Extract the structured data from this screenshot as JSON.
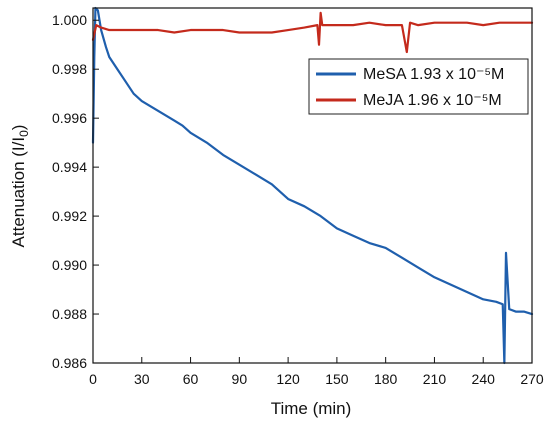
{
  "chart_data": {
    "type": "line",
    "xlabel": "Time (min)",
    "ylabel_main": "Attenuation (I/I",
    "ylabel_sub": "0",
    "ylabel_end": ")",
    "xlim": [
      0,
      270
    ],
    "ylim": [
      0.986,
      1.0005
    ],
    "x_ticks": [
      0,
      30,
      60,
      90,
      120,
      150,
      180,
      210,
      240,
      270
    ],
    "x_tick_labels": [
      "0",
      "30",
      "60",
      "90",
      "120",
      "150",
      "180",
      "210",
      "240",
      "270"
    ],
    "y_ticks": [
      0.986,
      0.988,
      0.99,
      0.992,
      0.994,
      0.996,
      0.998,
      1.0
    ],
    "y_tick_labels": [
      "0.986",
      "0.988",
      "0.990",
      "0.992",
      "0.994",
      "0.996",
      "0.998",
      "1.000"
    ],
    "grid": false,
    "legend_position": "top-right",
    "series": [
      {
        "name": "MeSA 1.93 x 10⁻⁵M",
        "color": "#1f5fad",
        "points": [
          [
            0,
            0.995
          ],
          [
            0.8,
            0.9985
          ],
          [
            1.5,
            1.0005
          ],
          [
            3,
            1.0004
          ],
          [
            5,
            0.9996
          ],
          [
            8,
            0.9989
          ],
          [
            10,
            0.9985
          ],
          [
            15,
            0.998
          ],
          [
            20,
            0.9975
          ],
          [
            25,
            0.997
          ],
          [
            30,
            0.9967
          ],
          [
            40,
            0.9963
          ],
          [
            50,
            0.9959
          ],
          [
            55,
            0.9957
          ],
          [
            60,
            0.9954
          ],
          [
            70,
            0.995
          ],
          [
            80,
            0.9945
          ],
          [
            90,
            0.9941
          ],
          [
            100,
            0.9937
          ],
          [
            110,
            0.9933
          ],
          [
            120,
            0.9927
          ],
          [
            130,
            0.9924
          ],
          [
            140,
            0.992
          ],
          [
            150,
            0.9915
          ],
          [
            160,
            0.9912
          ],
          [
            170,
            0.9909
          ],
          [
            180,
            0.9907
          ],
          [
            190,
            0.9903
          ],
          [
            200,
            0.9899
          ],
          [
            210,
            0.9895
          ],
          [
            220,
            0.9892
          ],
          [
            230,
            0.9889
          ],
          [
            240,
            0.9886
          ],
          [
            248,
            0.9885
          ],
          [
            252,
            0.9884
          ],
          [
            253,
            0.986
          ],
          [
            254,
            0.9905
          ],
          [
            256,
            0.9882
          ],
          [
            260,
            0.9881
          ],
          [
            265,
            0.9881
          ],
          [
            270,
            0.988
          ]
        ]
      },
      {
        "name": "MeJA 1.96 x 10⁻⁵M",
        "color": "#c42a1c",
        "points": [
          [
            0,
            0.9992
          ],
          [
            2,
            0.9998
          ],
          [
            5,
            0.9997
          ],
          [
            10,
            0.9996
          ],
          [
            20,
            0.9996
          ],
          [
            30,
            0.9996
          ],
          [
            40,
            0.9996
          ],
          [
            50,
            0.9995
          ],
          [
            60,
            0.9996
          ],
          [
            70,
            0.9996
          ],
          [
            80,
            0.9996
          ],
          [
            90,
            0.9995
          ],
          [
            100,
            0.9995
          ],
          [
            110,
            0.9995
          ],
          [
            120,
            0.9996
          ],
          [
            130,
            0.9997
          ],
          [
            138,
            0.9998
          ],
          [
            139,
            0.999
          ],
          [
            140,
            1.0003
          ],
          [
            141,
            0.9998
          ],
          [
            150,
            0.9998
          ],
          [
            160,
            0.9998
          ],
          [
            170,
            0.9999
          ],
          [
            180,
            0.9998
          ],
          [
            190,
            0.9998
          ],
          [
            193,
            0.9987
          ],
          [
            195,
            0.9999
          ],
          [
            200,
            0.9998
          ],
          [
            210,
            0.9999
          ],
          [
            220,
            0.9999
          ],
          [
            230,
            0.9999
          ],
          [
            240,
            0.9998
          ],
          [
            250,
            0.9999
          ],
          [
            260,
            0.9999
          ],
          [
            270,
            0.9999
          ]
        ]
      }
    ]
  }
}
